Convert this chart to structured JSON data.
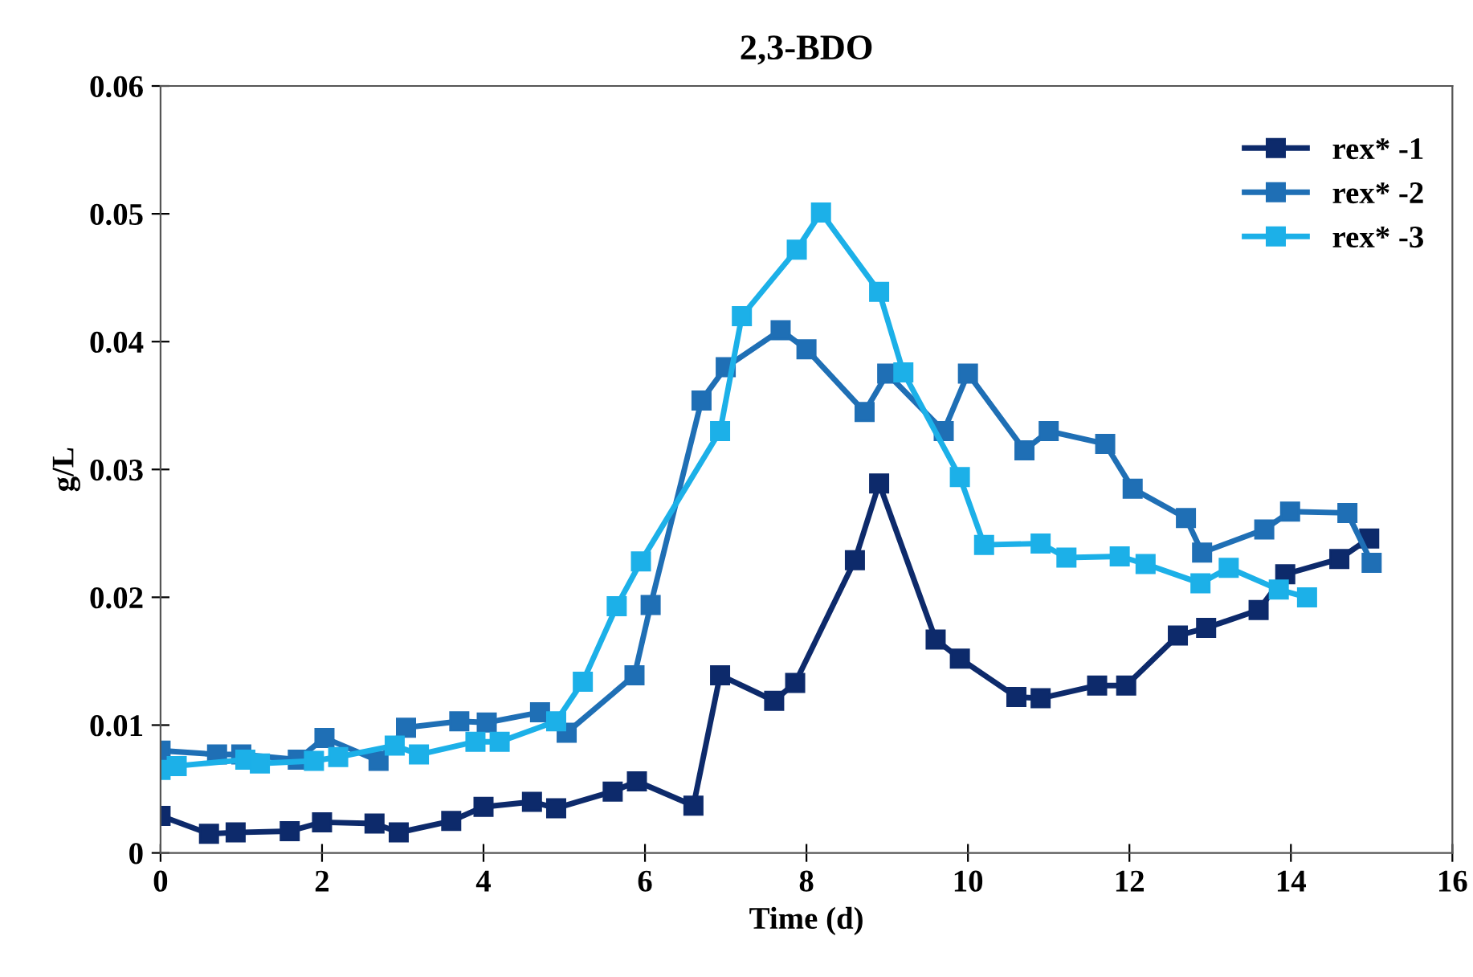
{
  "chart_data": {
    "type": "line",
    "title": "2,3-BDO",
    "xlabel": "Time (d)",
    "ylabel": "g/L",
    "xlim": [
      0,
      16
    ],
    "xticks": [
      0,
      2,
      4,
      6,
      8,
      10,
      12,
      14,
      16
    ],
    "ylim": [
      0,
      0.06
    ],
    "yticks": [
      0,
      0.01,
      0.02,
      0.03,
      0.04,
      0.05,
      0.06
    ],
    "grid": false,
    "legend": "top right",
    "marker": "square",
    "line_style": "solid",
    "series": [
      {
        "name": "rex* -1",
        "color": "#0d2a6b",
        "x": [
          0,
          0.6,
          0.93,
          1.6,
          2.0,
          2.65,
          2.95,
          3.6,
          4.0,
          4.6,
          4.9,
          5.6,
          5.9,
          6.6,
          6.93,
          7.6,
          7.86,
          8.6,
          8.9,
          9.6,
          9.9,
          10.6,
          10.9,
          11.6,
          11.96,
          12.6,
          12.95,
          13.6,
          13.93,
          14.6,
          14.97
        ],
        "values": [
          0.0029,
          0.0015,
          0.0016,
          0.0017,
          0.0024,
          0.0023,
          0.0016,
          0.0025,
          0.0036,
          0.004,
          0.0035,
          0.0048,
          0.0056,
          0.0037,
          0.0139,
          0.0119,
          0.0133,
          0.0229,
          0.0289,
          0.0167,
          0.0152,
          0.0122,
          0.0121,
          0.0131,
          0.0131,
          0.017,
          0.0176,
          0.019,
          0.0218,
          0.023,
          0.0246
        ]
      },
      {
        "name": "rex* -2",
        "color": "#1f6fb5",
        "x": [
          0,
          0.7,
          1.0,
          1.7,
          2.03,
          2.7,
          3.04,
          3.7,
          4.04,
          4.7,
          5.03,
          5.87,
          6.07,
          6.7,
          7.0,
          7.68,
          8.0,
          8.72,
          9.0,
          9.7,
          10.0,
          10.7,
          11.0,
          11.7,
          12.04,
          12.7,
          12.9,
          13.67,
          13.99,
          14.7,
          15.0
        ],
        "values": [
          0.008,
          0.0077,
          0.0077,
          0.0073,
          0.009,
          0.0072,
          0.0098,
          0.0103,
          0.0102,
          0.011,
          0.0094,
          0.0139,
          0.0194,
          0.0354,
          0.038,
          0.0409,
          0.0394,
          0.0345,
          0.0375,
          0.033,
          0.0375,
          0.0315,
          0.033,
          0.032,
          0.0285,
          0.0262,
          0.0235,
          0.0253,
          0.0267,
          0.0266,
          0.0227
        ]
      },
      {
        "name": "rex* -3",
        "color": "#1cb0e8",
        "x": [
          0,
          0.2,
          1.05,
          1.23,
          1.9,
          2.2,
          2.9,
          3.2,
          3.9,
          4.2,
          4.9,
          5.23,
          5.65,
          5.95,
          6.93,
          7.2,
          7.88,
          8.18,
          8.9,
          9.2,
          9.9,
          10.2,
          10.9,
          11.22,
          11.88,
          12.2,
          12.88,
          13.23,
          13.85,
          14.2
        ],
        "values": [
          0.0065,
          0.0068,
          0.0073,
          0.007,
          0.0072,
          0.0075,
          0.0084,
          0.0077,
          0.0087,
          0.0087,
          0.0103,
          0.0134,
          0.0193,
          0.0228,
          0.033,
          0.042,
          0.0472,
          0.0501,
          0.0439,
          0.0376,
          0.0294,
          0.0241,
          0.0242,
          0.0231,
          0.0232,
          0.0226,
          0.0211,
          0.0223,
          0.0206,
          0.02
        ]
      }
    ]
  }
}
